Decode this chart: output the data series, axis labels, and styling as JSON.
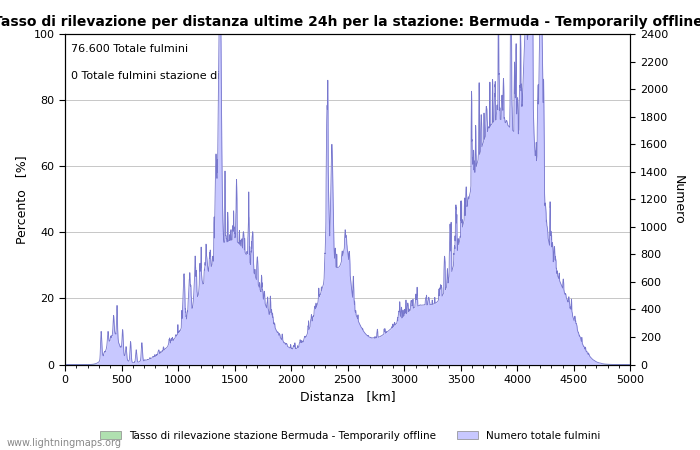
{
  "title": "Tasso di rilevazione per distanza ultime 24h per la stazione: Bermuda - Temporarily offline",
  "xlabel": "Distanza   [km]",
  "ylabel_left": "Percento   [%]",
  "ylabel_right": "Numero",
  "annotation_line1": "76.600 Totale fulmini",
  "annotation_line2": "0 Totale fulmini stazione di",
  "xlim": [
    0,
    5000
  ],
  "ylim_left": [
    0,
    100
  ],
  "ylim_right": [
    0,
    2400
  ],
  "xticks": [
    0,
    500,
    1000,
    1500,
    2000,
    2500,
    3000,
    3500,
    4000,
    4500,
    5000
  ],
  "yticks_left": [
    0,
    20,
    40,
    60,
    80,
    100
  ],
  "yticks_right": [
    0,
    200,
    400,
    600,
    800,
    1000,
    1200,
    1400,
    1600,
    1800,
    2000,
    2200,
    2400
  ],
  "legend_label_green": "Tasso di rilevazione stazione Bermuda - Temporarily offline",
  "legend_label_blue": "Numero totale fulmini",
  "fill_color_blue": "#c8c8ff",
  "fill_color_green": "#b0e0b0",
  "line_color": "#7777cc",
  "background_color": "#ffffff",
  "grid_color": "#b0b0b0",
  "watermark": "www.lightningmaps.org",
  "title_fontsize": 10,
  "axis_fontsize": 9,
  "tick_fontsize": 8,
  "annotation_fontsize": 8
}
